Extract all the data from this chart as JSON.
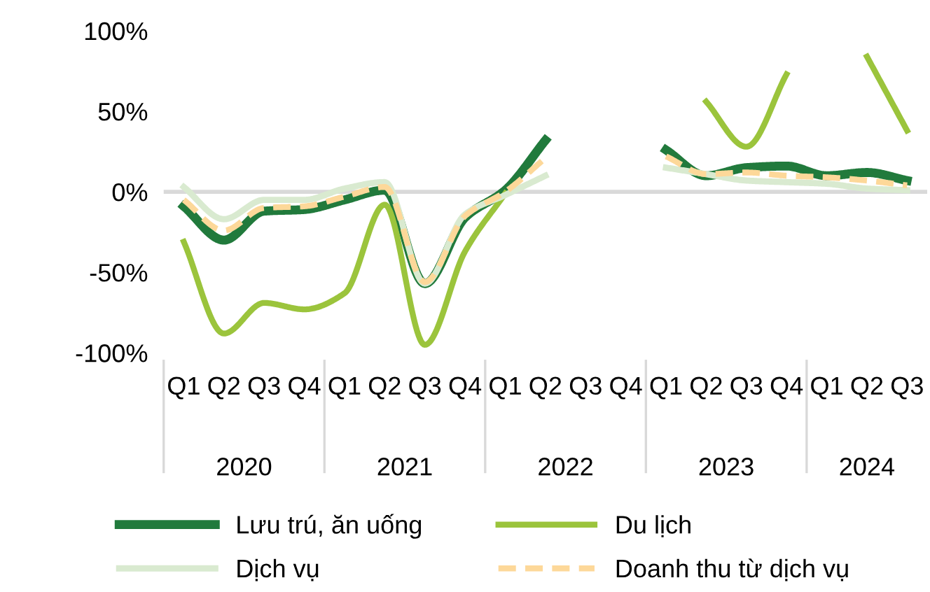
{
  "chart_data": {
    "type": "line",
    "categories": [
      "Q1",
      "Q2",
      "Q3",
      "Q4",
      "Q1",
      "Q2",
      "Q3",
      "Q4",
      "Q1",
      "Q2",
      "Q3",
      "Q4",
      "Q1",
      "Q2",
      "Q3",
      "Q4",
      "Q1",
      "Q2",
      "Q3"
    ],
    "annotations": [
      "2020",
      "2021",
      "2022",
      "2023",
      "2024"
    ],
    "ylim": [
      -100,
      100
    ],
    "yticks": [
      {
        "value": -100,
        "label": "-100%"
      },
      {
        "value": -50,
        "label": "-50%"
      },
      {
        "value": 0,
        "label": "0%"
      },
      {
        "value": 50,
        "label": "50%"
      },
      {
        "value": 100,
        "label": "100%"
      }
    ],
    "grid": false,
    "legend": "bottom",
    "marker": "none",
    "ref_lines": [
      {
        "axis": "y",
        "value": 0,
        "color": "#d9d9d9"
      }
    ],
    "series": [
      {
        "name": "Lưu trú, ăn uống",
        "color": "#217a3c",
        "values": [
          -9,
          -30,
          -12,
          -11,
          -5,
          1,
          -57,
          -16,
          1,
          32,
          null,
          null,
          26,
          10,
          15,
          16,
          10,
          12,
          7
        ]
      },
      {
        "name": "Du lịch",
        "color": "#9bc43c",
        "values": [
          -31,
          -88,
          -69,
          -73,
          -63,
          -8,
          -95,
          -37,
          -1,
          null,
          null,
          null,
          null,
          56,
          28,
          73,
          null,
          84,
          38
        ]
      },
      {
        "name": "Dịch vụ",
        "color": "#d9ead0",
        "values": [
          3,
          -17,
          -5,
          -5,
          2,
          6,
          -57,
          -14,
          -2,
          10,
          null,
          null,
          15,
          11,
          7,
          6,
          5,
          2,
          1
        ]
      },
      {
        "name": "Doanh thu từ dịch vụ",
        "color": "#fdd899",
        "line_style": "dashed",
        "values": [
          -5,
          -24,
          -10,
          -9,
          -3,
          3,
          -56,
          -15,
          0,
          21,
          null,
          null,
          22,
          11,
          12,
          10,
          9,
          7,
          4
        ]
      }
    ]
  }
}
